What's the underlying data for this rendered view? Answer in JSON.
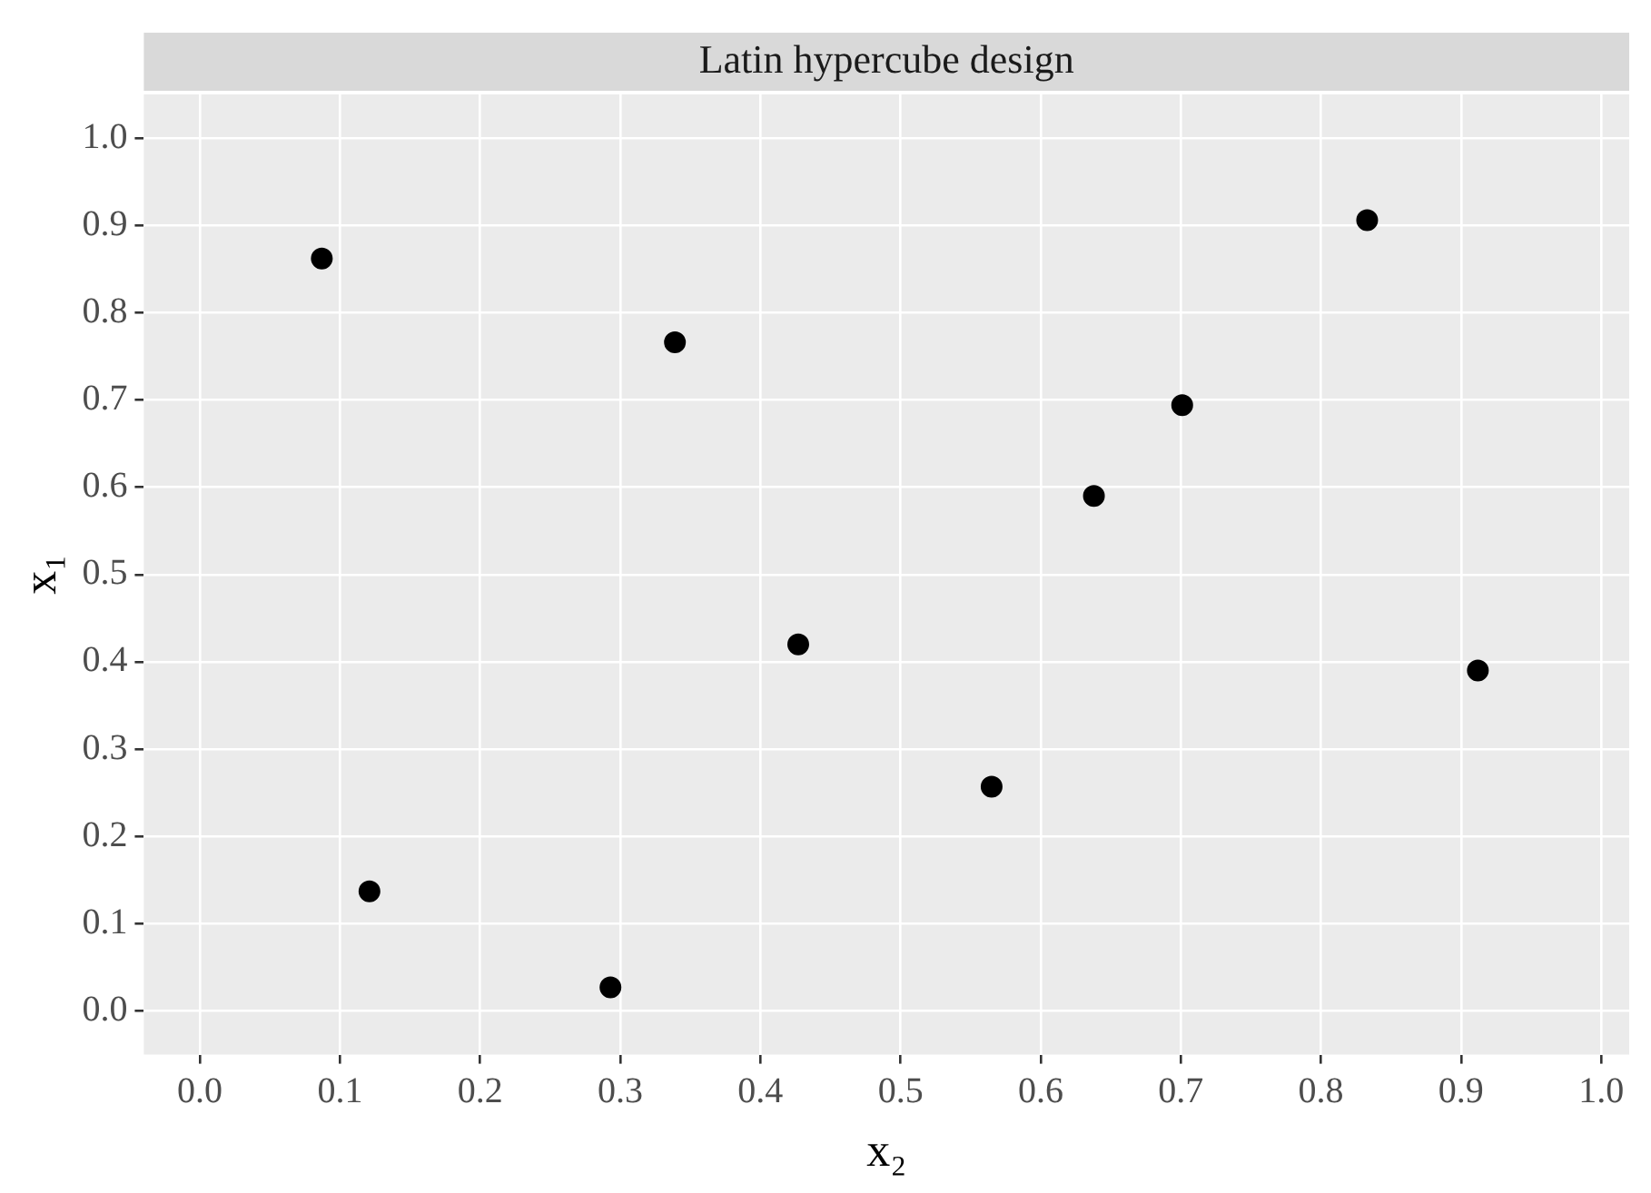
{
  "chart_data": {
    "type": "scatter",
    "title": "Latin hypercube design",
    "xlabel": "x₂",
    "ylabel": "x₁",
    "x": [
      0.087,
      0.121,
      0.293,
      0.339,
      0.427,
      0.565,
      0.638,
      0.701,
      0.833,
      0.912
    ],
    "values": [
      0.862,
      0.137,
      0.027,
      0.766,
      0.42,
      0.257,
      0.59,
      0.694,
      0.906,
      0.39
    ],
    "color": "#000000",
    "marker": "circle",
    "grid": true,
    "legend": false,
    "xlim": [
      -0.04,
      1.02
    ],
    "ylim": [
      -0.05,
      1.05
    ],
    "xticks": [
      {
        "value": 0,
        "label": "0.0"
      },
      0.1,
      0.2,
      0.3,
      0.4,
      0.5,
      0.6,
      0.7,
      0.8,
      0.9,
      {
        "value": 1,
        "label": "1.0"
      }
    ],
    "yticks": [
      {
        "value": 0,
        "label": "0.0"
      },
      0.1,
      0.2,
      0.3,
      0.4,
      0.5,
      0.6,
      0.7,
      0.8,
      0.9,
      {
        "value": 1,
        "label": "1.0"
      }
    ]
  }
}
